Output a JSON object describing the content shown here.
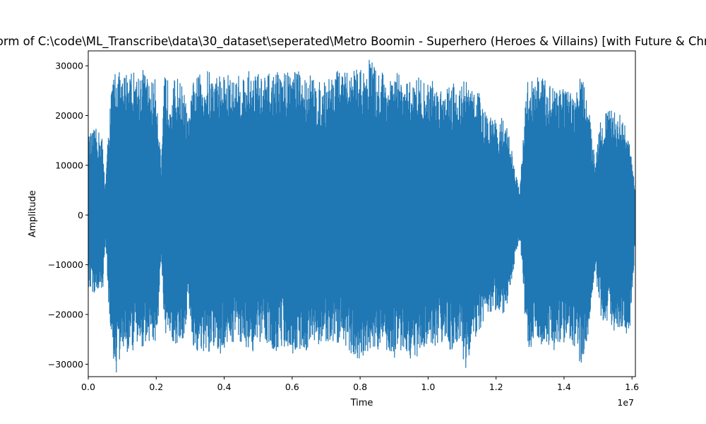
{
  "chart_data": {
    "type": "line",
    "title": "Waveform of C:\\code\\ML_Transcribe\\data\\30_dataset\\seperated\\Metro Boomin - Superhero (Heroes & Villains) [with Future & Chris Brown]",
    "xlabel": "Time",
    "ylabel": "Amplitude",
    "x_offset_text": "1e7",
    "xlim": [
      0,
      16100000
    ],
    "ylim": [
      -32500,
      33000
    ],
    "xticks": [
      0,
      2000000,
      4000000,
      6000000,
      8000000,
      10000000,
      12000000,
      14000000,
      16000000
    ],
    "xtick_labels": [
      "0.0",
      "0.2",
      "0.4",
      "0.6",
      "0.8",
      "1.0",
      "1.2",
      "1.4",
      "1.6"
    ],
    "yticks": [
      -30000,
      -20000,
      -10000,
      0,
      10000,
      20000,
      30000
    ],
    "ytick_labels": [
      "−30000",
      "−20000",
      "−10000",
      "0",
      "10000",
      "20000",
      "30000"
    ],
    "grid": false,
    "color": "#1f77b4",
    "series": [
      {
        "x": [
          0,
          200000,
          400000,
          500000,
          650000,
          800000,
          1000000,
          1200000,
          1400000,
          1600000,
          1800000,
          2000000,
          2150000,
          2250000,
          2400000,
          2600000,
          2800000,
          2950000,
          3100000,
          3300000,
          3500000,
          3700000,
          3900000,
          4100000,
          4300000,
          4500000,
          4700000,
          4900000,
          5100000,
          5300000,
          5500000,
          5700000,
          5900000,
          6100000,
          6300000,
          6500000,
          6700000,
          6900000,
          7100000,
          7300000,
          7500000,
          7700000,
          7900000,
          8100000,
          8300000,
          8500000,
          8700000,
          8900000,
          9100000,
          9300000,
          9500000,
          9700000,
          9900000,
          10100000,
          10300000,
          10500000,
          10700000,
          10900000,
          11100000,
          11300000,
          11500000,
          11650000,
          11800000,
          12000000,
          12200000,
          12400000,
          12550000,
          12700000,
          12900000,
          13100000,
          13300000,
          13500000,
          13700000,
          13900000,
          14100000,
          14300000,
          14500000,
          14700000,
          14900000,
          15100000,
          15300000,
          15500000,
          15700000,
          15900000,
          16100000
        ],
        "max": [
          16000,
          17500,
          16500,
          6000,
          24000,
          30500,
          27500,
          30500,
          28500,
          30000,
          27000,
          27500,
          10000,
          29500,
          26000,
          28000,
          26000,
          19000,
          27500,
          28500,
          29500,
          28000,
          29000,
          28500,
          27500,
          28500,
          29000,
          29500,
          28000,
          28500,
          29000,
          28500,
          30000,
          30500,
          27500,
          29000,
          27000,
          26500,
          28500,
          29500,
          28500,
          29000,
          30000,
          29000,
          32500,
          28500,
          29500,
          27000,
          29000,
          26500,
          27000,
          28500,
          26500,
          27500,
          26000,
          26500,
          27500,
          26000,
          27500,
          25500,
          25000,
          21000,
          20000,
          19000,
          20000,
          16500,
          9000,
          5000,
          27000,
          28000,
          28500,
          26500,
          27500,
          27000,
          25000,
          24000,
          28500,
          23000,
          12000,
          21000,
          21000,
          21000,
          20000,
          16000,
          5000
        ],
        "min": [
          -15500,
          -16000,
          -17500,
          -6000,
          -25000,
          -33000,
          -27500,
          -28000,
          -27500,
          -26500,
          -25500,
          -27000,
          -10000,
          -26500,
          -25000,
          -26500,
          -25500,
          -18000,
          -28000,
          -27500,
          -29500,
          -27500,
          -28500,
          -26000,
          -25500,
          -26000,
          -27000,
          -28000,
          -26500,
          -25500,
          -28000,
          -26500,
          -27000,
          -28500,
          -27000,
          -27500,
          -26500,
          -25500,
          -27000,
          -26000,
          -26500,
          -27500,
          -29500,
          -28500,
          -29000,
          -27000,
          -28000,
          -29500,
          -28000,
          -26500,
          -30000,
          -28500,
          -26500,
          -27500,
          -25500,
          -26000,
          -27500,
          -26000,
          -31500,
          -25000,
          -24500,
          -21000,
          -20000,
          -19500,
          -20500,
          -16000,
          -9000,
          -5000,
          -26500,
          -27000,
          -27500,
          -26000,
          -27500,
          -26500,
          -25000,
          -26500,
          -30500,
          -24500,
          -11500,
          -21500,
          -23000,
          -23500,
          -22500,
          -26000,
          -5000
        ]
      }
    ]
  }
}
